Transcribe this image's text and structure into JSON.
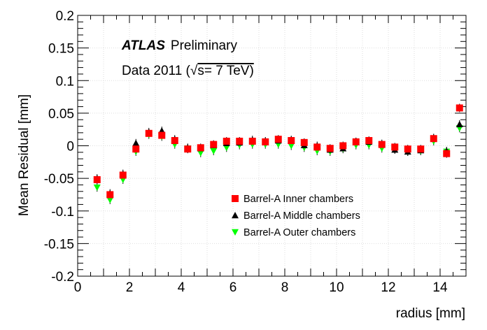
{
  "chart_data": {
    "type": "scatter",
    "title": "",
    "xlabel": "radius [mm]",
    "ylabel": "Mean Residual [mm]",
    "xlim": [
      0,
      15
    ],
    "ylim": [
      -0.2,
      0.2
    ],
    "x_ticks": [
      "0",
      "2",
      "4",
      "6",
      "8",
      "10",
      "12",
      "14"
    ],
    "y_ticks": [
      "-0.2",
      "-0.15",
      "-0.1",
      "-0.05",
      "0",
      "0.05",
      "0.1",
      "0.15",
      "0.2"
    ],
    "annotations": {
      "experiment": "ATLAS",
      "status": "Preliminary",
      "dataset_prefix": "Data 2011 (",
      "sqrt_symbol": "√",
      "dataset_suffix": "s= 7 TeV)"
    },
    "legend_position": "lower-middle",
    "x": [
      0.75,
      1.25,
      1.75,
      2.25,
      2.75,
      3.25,
      3.75,
      4.25,
      4.75,
      5.25,
      5.75,
      6.25,
      6.75,
      7.25,
      7.75,
      8.25,
      8.75,
      9.25,
      9.75,
      10.25,
      10.75,
      11.25,
      11.75,
      12.25,
      12.75,
      13.25,
      13.75,
      14.25,
      14.75
    ],
    "series": [
      {
        "name": "Barrel-A Inner chambers",
        "marker": "square",
        "color": "#ff0000",
        "values": [
          -0.052,
          -0.075,
          -0.045,
          -0.005,
          0.019,
          0.016,
          0.008,
          -0.005,
          -0.003,
          0.002,
          0.007,
          0.007,
          0.007,
          0.006,
          0.01,
          0.008,
          0.005,
          -0.002,
          -0.004,
          0.0,
          0.006,
          0.008,
          0.002,
          -0.002,
          -0.005,
          -0.005,
          0.011,
          -0.012,
          0.058
        ]
      },
      {
        "name": "Barrel-A Middle chambers",
        "marker": "triangle-up",
        "color": "#000000",
        "values": [
          -0.05,
          -0.073,
          -0.043,
          0.004,
          0.021,
          0.023,
          0.01,
          -0.003,
          -0.004,
          0.001,
          0.004,
          0.005,
          0.009,
          0.007,
          0.008,
          0.009,
          0.001,
          0.0,
          -0.006,
          -0.004,
          0.006,
          0.006,
          0.003,
          -0.006,
          -0.009,
          -0.007,
          0.012,
          -0.008,
          0.033
        ]
      },
      {
        "name": "Barrel-A Outer chambers",
        "marker": "triangle-down",
        "color": "#00ff00",
        "values": [
          -0.064,
          -0.083,
          -0.052,
          -0.009,
          0.017,
          0.014,
          0.002,
          -0.004,
          -0.011,
          -0.008,
          -0.003,
          0.001,
          0.002,
          0.002,
          0.002,
          0.0,
          -0.003,
          -0.008,
          -0.009,
          -0.005,
          0.001,
          0.001,
          -0.004,
          -0.005,
          -0.009,
          -0.008,
          0.007,
          -0.009,
          0.027
        ]
      }
    ]
  }
}
